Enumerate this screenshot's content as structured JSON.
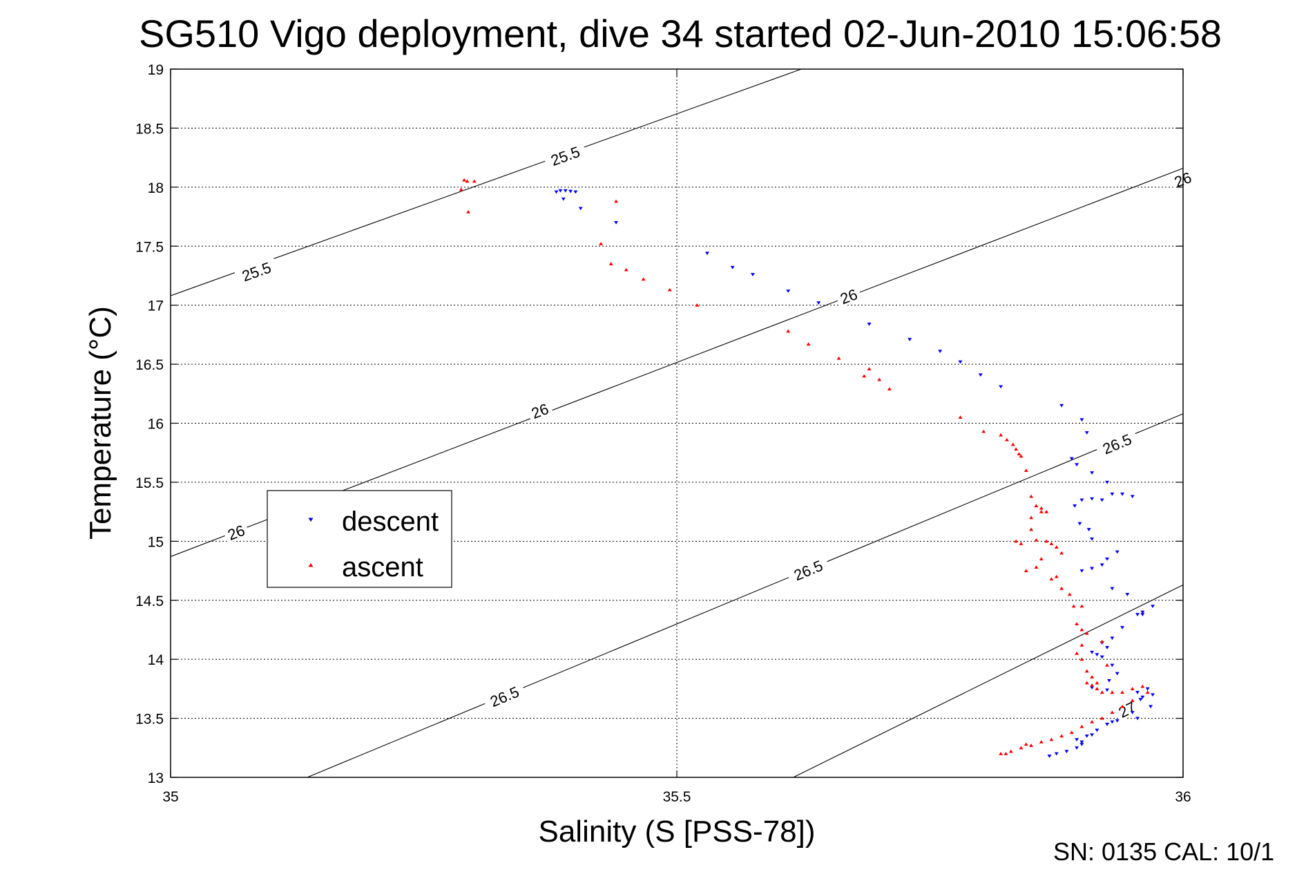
{
  "chart_data": {
    "type": "scatter",
    "title": "SG510 Vigo deployment, dive 34 started 02-Jun-2010 15:06:58",
    "xlabel": "Salinity (S [PSS-78])",
    "ylabel": "Temperature (°C)",
    "xlim": [
      35,
      36
    ],
    "ylim": [
      13,
      19
    ],
    "xticks": [
      "35",
      "35.5",
      "36"
    ],
    "yticks": [
      "13",
      "13.5",
      "14",
      "14.5",
      "15",
      "15.5",
      "16",
      "16.5",
      "17",
      "17.5",
      "18",
      "18.5",
      "19"
    ],
    "grid": true,
    "legend": {
      "placement": "left",
      "entries": [
        "descent",
        "ascent"
      ]
    },
    "footer": "SN: 0135  CAL: 10/1",
    "colors": {
      "descent": "#0000ff",
      "ascent": "#ff0000",
      "contour": "#000000"
    },
    "contours": [
      {
        "label": "25.5",
        "points": [
          [
            35.0,
            17.08
          ],
          [
            35.623,
            19.0
          ]
        ],
        "label_positions": [
          [
            35.085,
            17.28
          ],
          [
            35.39,
            18.26
          ]
        ]
      },
      {
        "label": "26",
        "points": [
          [
            35.0,
            14.87
          ],
          [
            36.0,
            18.16
          ]
        ],
        "label_positions": [
          [
            35.065,
            15.07
          ],
          [
            35.365,
            16.1
          ],
          [
            35.67,
            17.07
          ],
          [
            36.0,
            18.06
          ]
        ]
      },
      {
        "label": "26.5",
        "points": [
          [
            35.135,
            13.0
          ],
          [
            36.0,
            16.08
          ]
        ],
        "label_positions": [
          [
            35.33,
            13.68
          ],
          [
            35.63,
            14.75
          ],
          [
            35.935,
            15.82
          ]
        ]
      },
      {
        "label": "27",
        "points": [
          [
            35.615,
            13.0
          ],
          [
            36.0,
            14.63
          ]
        ],
        "label_positions": [
          [
            35.945,
            13.57
          ]
        ]
      }
    ],
    "series": [
      {
        "name": "descent",
        "marker": "triangle-down",
        "points": [
          [
            35.381,
            17.96
          ],
          [
            35.385,
            17.97
          ],
          [
            35.39,
            17.97
          ],
          [
            35.395,
            17.965
          ],
          [
            35.4,
            17.96
          ],
          [
            35.388,
            17.9
          ],
          [
            35.405,
            17.82
          ],
          [
            35.44,
            17.7
          ],
          [
            35.53,
            17.44
          ],
          [
            35.555,
            17.32
          ],
          [
            35.575,
            17.26
          ],
          [
            35.61,
            17.12
          ],
          [
            35.64,
            17.02
          ],
          [
            35.69,
            16.84
          ],
          [
            35.73,
            16.71
          ],
          [
            35.76,
            16.61
          ],
          [
            35.78,
            16.52
          ],
          [
            35.8,
            16.41
          ],
          [
            35.82,
            16.31
          ],
          [
            35.88,
            16.15
          ],
          [
            35.9,
            16.03
          ],
          [
            35.905,
            15.92
          ],
          [
            35.89,
            15.7
          ],
          [
            35.895,
            15.65
          ],
          [
            35.91,
            15.58
          ],
          [
            35.925,
            15.5
          ],
          [
            35.93,
            15.4
          ],
          [
            35.94,
            15.4
          ],
          [
            35.95,
            15.38
          ],
          [
            35.893,
            15.3
          ],
          [
            35.9,
            15.35
          ],
          [
            35.91,
            15.36
          ],
          [
            35.92,
            15.35
          ],
          [
            35.898,
            15.15
          ],
          [
            35.907,
            15.1
          ],
          [
            35.91,
            15.02
          ],
          [
            35.935,
            14.91
          ],
          [
            35.925,
            14.85
          ],
          [
            35.91,
            14.77
          ],
          [
            35.9,
            14.75
          ],
          [
            35.92,
            14.8
          ],
          [
            35.93,
            14.6
          ],
          [
            35.945,
            14.55
          ],
          [
            35.955,
            14.38
          ],
          [
            35.96,
            14.4
          ],
          [
            35.94,
            14.27
          ],
          [
            35.93,
            14.18
          ],
          [
            35.92,
            14.14
          ],
          [
            35.925,
            14.1
          ],
          [
            35.91,
            14.06
          ],
          [
            35.915,
            14.04
          ],
          [
            35.92,
            14.02
          ],
          [
            35.93,
            13.95
          ],
          [
            35.935,
            13.88
          ],
          [
            35.927,
            13.82
          ],
          [
            35.91,
            13.76
          ],
          [
            35.925,
            13.74
          ],
          [
            35.955,
            13.72
          ],
          [
            35.96,
            13.68
          ],
          [
            35.965,
            13.75
          ],
          [
            35.958,
            13.66
          ],
          [
            35.97,
            13.7
          ],
          [
            35.968,
            13.6
          ],
          [
            35.95,
            13.55
          ],
          [
            35.955,
            13.5
          ],
          [
            35.935,
            13.48
          ],
          [
            35.93,
            13.47
          ],
          [
            35.925,
            13.45
          ],
          [
            35.915,
            13.4
          ],
          [
            35.905,
            13.35
          ],
          [
            35.9,
            13.3
          ],
          [
            35.9,
            13.28
          ],
          [
            35.895,
            13.25
          ],
          [
            35.885,
            13.22
          ],
          [
            35.875,
            13.2
          ],
          [
            35.868,
            13.18
          ],
          [
            35.895,
            13.32
          ],
          [
            35.91,
            13.36
          ],
          [
            35.97,
            14.45
          ],
          [
            35.96,
            14.38
          ]
        ]
      },
      {
        "name": "ascent",
        "marker": "triangle-up",
        "points": [
          [
            35.287,
            17.98
          ],
          [
            35.29,
            18.06
          ],
          [
            35.293,
            18.05
          ],
          [
            35.3,
            18.05
          ],
          [
            35.294,
            17.79
          ],
          [
            35.44,
            17.88
          ],
          [
            35.425,
            17.52
          ],
          [
            35.435,
            17.35
          ],
          [
            35.45,
            17.3
          ],
          [
            35.467,
            17.22
          ],
          [
            35.493,
            17.13
          ],
          [
            35.52,
            17.0
          ],
          [
            35.61,
            16.78
          ],
          [
            35.63,
            16.67
          ],
          [
            35.66,
            16.55
          ],
          [
            35.69,
            16.46
          ],
          [
            35.685,
            16.4
          ],
          [
            35.7,
            16.37
          ],
          [
            35.71,
            16.29
          ],
          [
            35.78,
            16.05
          ],
          [
            35.803,
            15.93
          ],
          [
            35.82,
            15.9
          ],
          [
            35.826,
            15.86
          ],
          [
            35.832,
            15.82
          ],
          [
            35.835,
            15.78
          ],
          [
            35.838,
            15.74
          ],
          [
            35.84,
            15.72
          ],
          [
            35.845,
            15.6
          ],
          [
            35.85,
            15.38
          ],
          [
            35.855,
            15.3
          ],
          [
            35.86,
            15.25
          ],
          [
            35.85,
            15.2
          ],
          [
            35.855,
            15.01
          ],
          [
            35.865,
            15.0
          ],
          [
            35.87,
            14.98
          ],
          [
            35.875,
            14.95
          ],
          [
            35.88,
            14.9
          ],
          [
            35.86,
            14.85
          ],
          [
            35.855,
            14.78
          ],
          [
            35.87,
            14.68
          ],
          [
            35.875,
            14.7
          ],
          [
            35.88,
            14.6
          ],
          [
            35.888,
            14.55
          ],
          [
            35.892,
            14.45
          ],
          [
            35.895,
            14.3
          ],
          [
            35.9,
            14.25
          ],
          [
            35.905,
            14.22
          ],
          [
            35.9,
            14.12
          ],
          [
            35.895,
            14.05
          ],
          [
            35.9,
            14.0
          ],
          [
            35.905,
            13.9
          ],
          [
            35.91,
            13.85
          ],
          [
            35.915,
            13.8
          ],
          [
            35.91,
            13.78
          ],
          [
            35.915,
            13.75
          ],
          [
            35.92,
            13.72
          ],
          [
            35.93,
            13.72
          ],
          [
            35.94,
            13.72
          ],
          [
            35.95,
            13.75
          ],
          [
            35.96,
            13.77
          ],
          [
            35.965,
            13.72
          ],
          [
            35.95,
            13.65
          ],
          [
            35.94,
            13.6
          ],
          [
            35.93,
            13.55
          ],
          [
            35.92,
            13.5
          ],
          [
            35.91,
            13.47
          ],
          [
            35.9,
            13.43
          ],
          [
            35.89,
            13.38
          ],
          [
            35.88,
            13.35
          ],
          [
            35.87,
            13.32
          ],
          [
            35.86,
            13.3
          ],
          [
            35.85,
            13.27
          ],
          [
            35.84,
            13.25
          ],
          [
            35.83,
            13.22
          ],
          [
            35.825,
            13.2
          ],
          [
            35.82,
            13.2
          ],
          [
            35.845,
            13.28
          ],
          [
            35.835,
            15.0
          ],
          [
            35.84,
            14.98
          ],
          [
            35.845,
            14.75
          ],
          [
            35.86,
            15.28
          ],
          [
            35.865,
            15.25
          ],
          [
            35.85,
            15.1
          ],
          [
            35.9,
            14.45
          ],
          [
            35.92,
            14.15
          ],
          [
            35.925,
            13.95
          ],
          [
            35.905,
            13.8
          ]
        ]
      }
    ]
  }
}
